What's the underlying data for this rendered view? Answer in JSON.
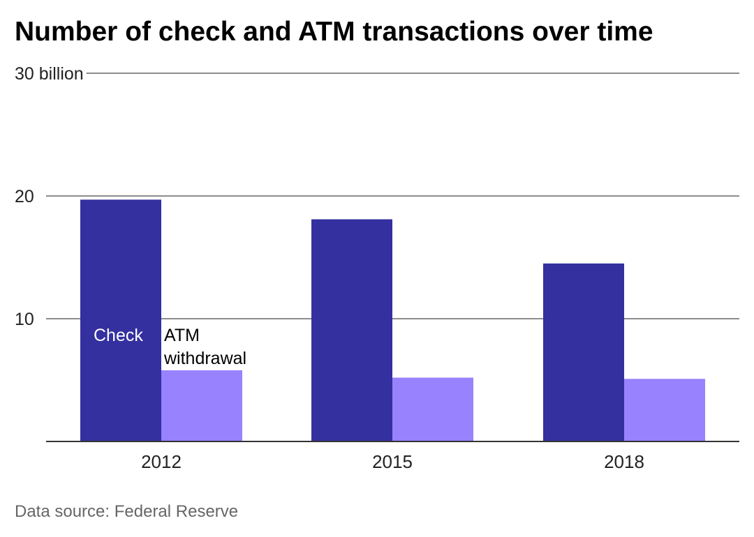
{
  "chart_data": {
    "type": "bar",
    "title": "Number of check and ATM transactions over time",
    "categories": [
      "2012",
      "2015",
      "2018"
    ],
    "series": [
      {
        "name": "Check",
        "values": [
          19.7,
          18.1,
          14.5
        ],
        "color": "#3430a0"
      },
      {
        "name": "ATM withdrawal",
        "values": [
          5.8,
          5.2,
          5.1
        ],
        "color": "#9882fe"
      }
    ],
    "ylim": [
      0,
      30
    ],
    "yticks": [
      {
        "value": 30,
        "label": "30 billion"
      },
      {
        "value": 20,
        "label": "20"
      },
      {
        "value": 10,
        "label": "10"
      }
    ],
    "series_label_lines": [
      [
        "Check"
      ],
      [
        "ATM",
        "withdrawal"
      ]
    ],
    "grid": true,
    "legend": "inline labels on first category bars",
    "source": "Data source: Federal Reserve"
  }
}
